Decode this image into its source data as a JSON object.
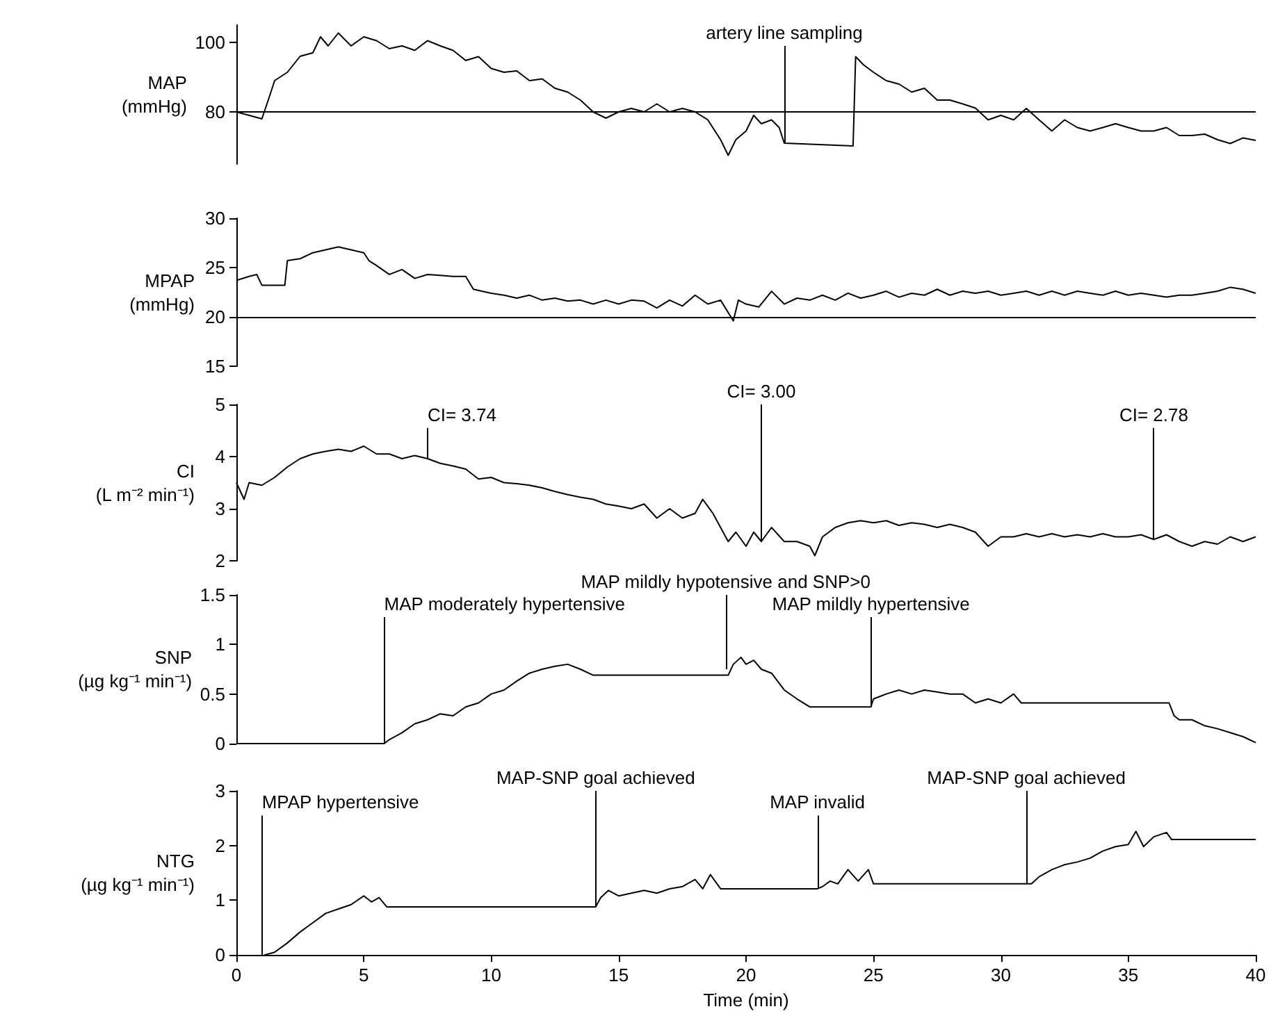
{
  "chart_data": [
    {
      "type": "line",
      "ylabel": "MAP (mmHg)",
      "color": "#000000",
      "xlim": [
        0,
        40
      ],
      "ylim": [
        65,
        105
      ],
      "yticks": [
        80,
        100
      ],
      "tick_labels": "y",
      "ref_lines": [
        {
          "axis": "y",
          "value": 80,
          "color": "#000000"
        }
      ],
      "annotations": [
        {
          "text": "artery line sampling",
          "x": 21.5,
          "y": 71
        }
      ],
      "x": [
        0,
        1,
        1.3,
        1.5,
        2,
        2.5,
        3,
        3.3,
        3.6,
        4,
        4.5,
        5,
        5.5,
        6,
        6.5,
        7,
        7.5,
        8,
        8.5,
        9,
        9.5,
        10,
        10.5,
        11,
        11.5,
        12,
        12.5,
        13,
        13.5,
        14,
        14.5,
        15,
        15.5,
        16,
        16.5,
        17,
        17.5,
        18,
        18.5,
        19,
        19.3,
        19.6,
        20,
        20.3,
        20.6,
        21,
        21.3,
        21.5,
        24.2,
        24.3,
        24.6,
        25,
        25.5,
        26,
        26.5,
        27,
        27.5,
        28,
        28.5,
        29,
        29.5,
        30,
        30.5,
        31,
        31.5,
        32,
        32.5,
        33,
        33.5,
        34,
        34.5,
        35,
        35.5,
        36,
        36.5,
        37,
        37.5,
        38,
        38.5,
        39,
        39.5,
        40
      ],
      "values": [
        80,
        78,
        84.5,
        89,
        91.4,
        96,
        97,
        101.6,
        99,
        102.7,
        99,
        101.6,
        100.5,
        98.2,
        99,
        97.7,
        100.5,
        99,
        97.7,
        94.8,
        95.9,
        92.5,
        91.4,
        91.8,
        89,
        89.5,
        86.8,
        85.7,
        83.4,
        80,
        78.2,
        80,
        81,
        80,
        82.3,
        80,
        81,
        80,
        77.7,
        72,
        67.5,
        72,
        74.5,
        79,
        76.6,
        77.7,
        75.5,
        71,
        70.2,
        95.9,
        93.6,
        91.4,
        89,
        88,
        85.7,
        86.8,
        83.4,
        83.4,
        82.3,
        81.1,
        77.7,
        79,
        77.7,
        81,
        77.7,
        74.5,
        77.7,
        75.5,
        74.5,
        75.5,
        76.6,
        75.5,
        74.5,
        74.5,
        75.5,
        73.2,
        73.2,
        73.6,
        72,
        70.9,
        72.5,
        71.8
      ]
    },
    {
      "type": "line",
      "ylabel": "MPAP (mmHg)",
      "color": "#000000",
      "xlim": [
        0,
        40
      ],
      "ylim": [
        15,
        30
      ],
      "yticks": [
        15,
        20,
        25,
        30
      ],
      "tick_labels": "y",
      "ref_lines": [
        {
          "axis": "y",
          "value": 20,
          "color": "#000000"
        }
      ],
      "x": [
        0,
        0.5,
        0.8,
        1,
        1.9,
        2,
        2.5,
        3,
        3.5,
        4,
        4.5,
        5,
        5.2,
        5.5,
        6,
        6.5,
        7,
        7.5,
        8,
        8.5,
        9,
        9.3,
        10,
        10.5,
        11,
        11.5,
        12,
        12.5,
        13,
        13.5,
        14,
        14.5,
        15,
        15.5,
        16,
        16.5,
        17,
        17.5,
        18,
        18.5,
        19,
        19.5,
        19.7,
        20,
        20.5,
        21,
        21.5,
        22,
        22.5,
        23,
        23.5,
        24,
        24.5,
        25,
        25.5,
        26,
        26.5,
        27,
        27.5,
        28,
        28.5,
        29,
        29.5,
        30,
        30.5,
        31,
        31.5,
        32,
        32.5,
        33,
        33.5,
        34,
        34.5,
        35,
        35.5,
        36,
        36.5,
        37,
        37.5,
        38,
        38.5,
        39,
        39.5,
        40
      ],
      "values": [
        23.7,
        24.1,
        24.3,
        23.2,
        23.2,
        25.7,
        25.9,
        26.5,
        26.8,
        27.1,
        26.8,
        26.5,
        25.7,
        25.2,
        24.3,
        24.8,
        23.9,
        24.3,
        24.2,
        24.1,
        24.1,
        22.8,
        22.4,
        22.2,
        21.9,
        22.2,
        21.7,
        21.9,
        21.6,
        21.7,
        21.3,
        21.7,
        21.3,
        21.7,
        21.6,
        20.9,
        21.7,
        21.1,
        22.2,
        21.3,
        21.7,
        19.6,
        21.7,
        21.3,
        21,
        22.6,
        21.3,
        21.9,
        21.7,
        22.2,
        21.7,
        22.4,
        21.9,
        22.2,
        22.6,
        22,
        22.4,
        22.2,
        22.8,
        22.2,
        22.6,
        22.4,
        22.6,
        22.2,
        22.4,
        22.6,
        22.2,
        22.6,
        22.2,
        22.6,
        22.4,
        22.2,
        22.6,
        22.2,
        22.4,
        22.2,
        22,
        22.2,
        22.2,
        22.4,
        22.6,
        23,
        22.8,
        22.4
      ]
    },
    {
      "type": "line",
      "ylabel": "CI (L m⁻² min⁻¹)",
      "color": "#000000",
      "xlim": [
        0,
        40
      ],
      "ylim": [
        2,
        5
      ],
      "yticks": [
        2,
        3,
        4,
        5
      ],
      "tick_labels": "y",
      "annotations": [
        {
          "text": "CI= 3.74",
          "x": 7.5,
          "y": 3.96
        },
        {
          "text": "CI= 3.00",
          "x": 20.6,
          "y": 2.37
        },
        {
          "text": "CI= 2.78",
          "x": 36,
          "y": 2.41
        }
      ],
      "x": [
        0,
        0.3,
        0.5,
        1,
        1.5,
        2,
        2.5,
        3,
        3.5,
        4,
        4.5,
        5,
        5.5,
        6,
        6.5,
        7,
        7.5,
        8,
        8.5,
        9,
        9.5,
        10,
        10.5,
        11,
        11.5,
        12,
        12.5,
        13,
        13.5,
        14,
        14.5,
        15,
        15.5,
        16,
        16.5,
        17,
        17.5,
        18,
        18.3,
        18.7,
        19,
        19.3,
        19.6,
        20,
        20.3,
        20.6,
        21,
        21.5,
        22,
        22.5,
        22.7,
        23,
        23.5,
        24,
        24.5,
        25,
        25.5,
        26,
        26.5,
        27,
        27.5,
        28,
        28.5,
        29,
        29.5,
        30,
        30.5,
        31,
        31.5,
        32,
        32.5,
        33,
        33.5,
        34,
        34.5,
        35,
        35.5,
        36,
        36.5,
        37,
        37.5,
        38,
        38.5,
        39,
        39.5,
        40
      ],
      "values": [
        3.5,
        3.18,
        3.5,
        3.45,
        3.6,
        3.8,
        3.96,
        4.05,
        4.1,
        4.14,
        4.1,
        4.2,
        4.05,
        4.05,
        3.96,
        4.02,
        3.96,
        3.87,
        3.82,
        3.76,
        3.57,
        3.6,
        3.5,
        3.48,
        3.45,
        3.4,
        3.33,
        3.27,
        3.22,
        3.18,
        3.09,
        3.05,
        3,
        3.09,
        2.82,
        3,
        2.82,
        2.91,
        3.18,
        2.91,
        2.64,
        2.37,
        2.55,
        2.28,
        2.55,
        2.37,
        2.64,
        2.37,
        2.37,
        2.28,
        2.1,
        2.46,
        2.64,
        2.73,
        2.77,
        2.73,
        2.77,
        2.68,
        2.73,
        2.7,
        2.64,
        2.7,
        2.64,
        2.55,
        2.28,
        2.46,
        2.46,
        2.52,
        2.46,
        2.52,
        2.46,
        2.5,
        2.46,
        2.52,
        2.46,
        2.46,
        2.5,
        2.41,
        2.5,
        2.37,
        2.28,
        2.37,
        2.32,
        2.46,
        2.37,
        2.46
      ]
    },
    {
      "type": "line",
      "ylabel": "SNP (µg kg⁻¹ min⁻¹)",
      "color": "#000000",
      "xlim": [
        0,
        40
      ],
      "ylim": [
        0,
        1.5
      ],
      "yticks": [
        0,
        0.5,
        1,
        1.5
      ],
      "tick_labels": "y",
      "annotations": [
        {
          "text": "MAP moderately hypertensive",
          "x": 5.8,
          "y": 0
        },
        {
          "text": "MAP mildly hypotensive and SNP>0",
          "x": 19.2,
          "y": 0.75
        },
        {
          "text": "MAP mildly hypertensive",
          "x": 24.9,
          "y": 0.37
        }
      ],
      "x": [
        0,
        5.8,
        6,
        6.5,
        7,
        7.5,
        8,
        8.5,
        9,
        9.5,
        10,
        10.5,
        11,
        11.5,
        12,
        12.5,
        13,
        13.5,
        14,
        19.3,
        19.5,
        19.8,
        20,
        20.3,
        20.6,
        21,
        21.5,
        22,
        22.5,
        24.9,
        25,
        25.5,
        26,
        26.5,
        27,
        27.5,
        28,
        28.5,
        29,
        29.5,
        30,
        30.5,
        30.8,
        36.6,
        36.8,
        37,
        37.5,
        38,
        38.5,
        39,
        39.5,
        40
      ],
      "values": [
        0,
        0,
        0.04,
        0.11,
        0.2,
        0.24,
        0.3,
        0.28,
        0.37,
        0.41,
        0.5,
        0.54,
        0.63,
        0.71,
        0.75,
        0.78,
        0.8,
        0.75,
        0.69,
        0.69,
        0.8,
        0.87,
        0.8,
        0.84,
        0.75,
        0.71,
        0.54,
        0.45,
        0.37,
        0.37,
        0.45,
        0.5,
        0.54,
        0.5,
        0.54,
        0.52,
        0.5,
        0.5,
        0.41,
        0.45,
        0.41,
        0.5,
        0.41,
        0.41,
        0.28,
        0.24,
        0.24,
        0.18,
        0.15,
        0.11,
        0.07,
        0.01
      ]
    },
    {
      "type": "line",
      "ylabel": "NTG (µg kg⁻¹ min⁻¹)",
      "xlabel": "Time (min)",
      "color": "#000000",
      "xlim": [
        0,
        40
      ],
      "xticks": [
        0,
        5,
        10,
        15,
        20,
        25,
        30,
        35,
        40
      ],
      "ylim": [
        0,
        3
      ],
      "yticks": [
        0,
        1,
        2,
        3
      ],
      "annotations": [
        {
          "text": "MPAP hypertensive",
          "x": 1,
          "y": 0
        },
        {
          "text": "MAP-SNP goal achieved",
          "x": 14.1,
          "y": 0.88
        },
        {
          "text": "MAP invalid",
          "x": 22.8,
          "y": 1.21
        },
        {
          "text": "MAP-SNP goal achieved",
          "x": 31,
          "y": 1.3
        }
      ],
      "x": [
        1.1,
        1.5,
        2,
        2.5,
        3,
        3.5,
        4,
        4.5,
        5,
        5.3,
        5.6,
        5.9,
        14.1,
        14.3,
        14.6,
        15,
        15.5,
        16,
        16.5,
        17,
        17.5,
        18,
        18.3,
        18.6,
        19,
        22.8,
        23,
        23.3,
        23.6,
        24,
        24.4,
        24.8,
        25,
        31,
        31.2,
        31.5,
        32,
        32.5,
        33,
        33.5,
        34,
        34.5,
        35,
        35.3,
        35.6,
        36,
        36.5,
        36.7,
        40
      ],
      "values": [
        0,
        0.05,
        0.22,
        0.42,
        0.59,
        0.76,
        0.84,
        0.92,
        1.08,
        0.97,
        1.05,
        0.88,
        0.88,
        1.05,
        1.18,
        1.08,
        1.13,
        1.18,
        1.13,
        1.21,
        1.25,
        1.38,
        1.21,
        1.47,
        1.21,
        1.21,
        1.25,
        1.35,
        1.3,
        1.56,
        1.35,
        1.56,
        1.3,
        1.3,
        1.3,
        1.43,
        1.56,
        1.65,
        1.7,
        1.77,
        1.9,
        1.98,
        2.02,
        2.26,
        1.98,
        2.16,
        2.24,
        2.11,
        2.11
      ]
    }
  ]
}
